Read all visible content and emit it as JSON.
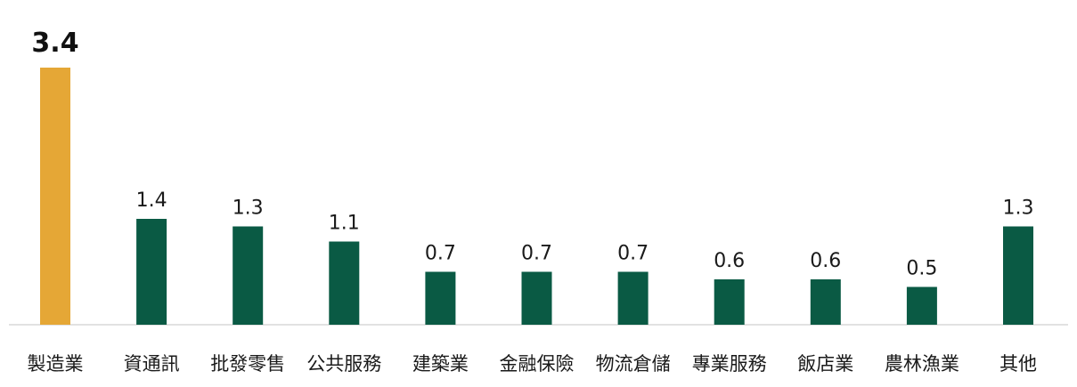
{
  "chart_data": {
    "type": "bar",
    "categories": [
      "製造業",
      "資通訊",
      "批發零售",
      "公共服務",
      "建築業",
      "金融保險",
      "物流倉儲",
      "專業服務",
      "飯店業",
      "農林漁業",
      "其他"
    ],
    "values": [
      3.4,
      1.4,
      1.3,
      1.1,
      0.7,
      0.7,
      0.7,
      0.6,
      0.6,
      0.5,
      1.3
    ],
    "value_labels": [
      "3.4",
      "1.4",
      "1.3",
      "1.1",
      "0.7",
      "0.7",
      "0.7",
      "0.6",
      "0.6",
      "0.5",
      "1.3"
    ],
    "highlight_index": 0,
    "title": "",
    "xlabel": "",
    "ylabel": "",
    "ylim": [
      0,
      3.4
    ],
    "grid": false,
    "legend": "none"
  },
  "colors": {
    "bar": "#0a5a44",
    "highlight": "#e5a736",
    "axis": "#d9d9d9"
  }
}
